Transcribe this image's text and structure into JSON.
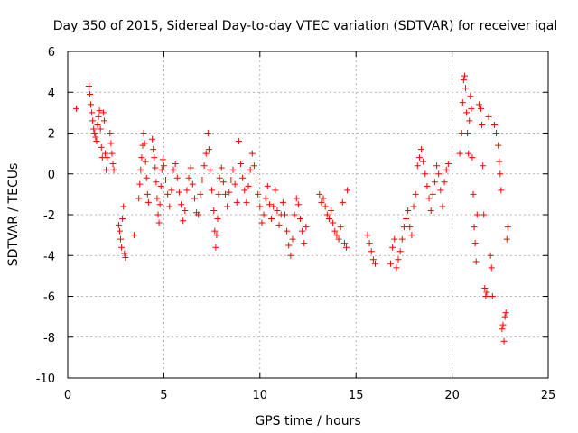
{
  "chart_data": {
    "type": "scatter",
    "title": "Day 350 of 2015, Sidereal Day-to-day VTEC variation (SDTVAR) for receiver iqal",
    "xlabel": "GPS time / hours",
    "ylabel": "SDTVAR / TECUs",
    "xlim": [
      0,
      25
    ],
    "ylim": [
      -10,
      6
    ],
    "xticks": [
      0,
      5,
      10,
      15,
      20,
      25
    ],
    "yticks": [
      -10,
      -8,
      -6,
      -4,
      -2,
      0,
      2,
      4,
      6
    ],
    "grid": true,
    "marker": "+",
    "color": "#ff0000",
    "series": [
      {
        "name": "SDTVAR",
        "points": [
          [
            0.45,
            3.2
          ],
          [
            1.1,
            4.3
          ],
          [
            1.15,
            3.9
          ],
          [
            1.2,
            3.4
          ],
          [
            1.25,
            3.0
          ],
          [
            1.3,
            2.6
          ],
          [
            1.35,
            2.2
          ],
          [
            1.4,
            2.0
          ],
          [
            1.45,
            1.8
          ],
          [
            1.5,
            1.6
          ],
          [
            1.55,
            2.4
          ],
          [
            1.6,
            2.8
          ],
          [
            1.65,
            3.1
          ],
          [
            1.7,
            2.2
          ],
          [
            1.75,
            1.3
          ],
          [
            1.8,
            0.8
          ],
          [
            1.85,
            3.0
          ],
          [
            1.9,
            2.6
          ],
          [
            1.95,
            1.0
          ],
          [
            2.0,
            0.2
          ],
          [
            2.05,
            0.8
          ],
          [
            2.2,
            2.0
          ],
          [
            2.25,
            1.5
          ],
          [
            2.3,
            1.0
          ],
          [
            2.35,
            0.5
          ],
          [
            2.4,
            0.2
          ],
          [
            2.65,
            -2.5
          ],
          [
            2.7,
            -2.8
          ],
          [
            2.75,
            -3.2
          ],
          [
            2.8,
            -3.6
          ],
          [
            2.85,
            -2.2
          ],
          [
            2.9,
            -1.6
          ],
          [
            2.95,
            -3.9
          ],
          [
            3.0,
            -4.1
          ],
          [
            3.45,
            -3.0
          ],
          [
            3.7,
            -1.2
          ],
          [
            3.75,
            -0.5
          ],
          [
            3.8,
            0.2
          ],
          [
            3.85,
            0.8
          ],
          [
            3.9,
            1.4
          ],
          [
            3.95,
            2.0
          ],
          [
            4.0,
            1.5
          ],
          [
            4.05,
            0.6
          ],
          [
            4.1,
            -0.2
          ],
          [
            4.15,
            -1.0
          ],
          [
            4.2,
            -1.4
          ],
          [
            4.4,
            1.7
          ],
          [
            4.45,
            1.2
          ],
          [
            4.5,
            0.8
          ],
          [
            4.55,
            0.3
          ],
          [
            4.6,
            -0.4
          ],
          [
            4.65,
            -1.2
          ],
          [
            4.7,
            -2.0
          ],
          [
            4.75,
            -2.4
          ],
          [
            4.8,
            -1.5
          ],
          [
            4.85,
            -0.6
          ],
          [
            4.9,
            0.2
          ],
          [
            4.95,
            0.7
          ],
          [
            5.0,
            0.4
          ],
          [
            5.1,
            -0.3
          ],
          [
            5.2,
            -1.0
          ],
          [
            5.3,
            -1.6
          ],
          [
            5.4,
            -0.8
          ],
          [
            5.5,
            0.2
          ],
          [
            5.6,
            0.5
          ],
          [
            5.7,
            -0.2
          ],
          [
            5.8,
            -0.9
          ],
          [
            5.9,
            -1.5
          ],
          [
            6.0,
            -2.3
          ],
          [
            6.1,
            -1.8
          ],
          [
            6.2,
            -0.8
          ],
          [
            6.3,
            -0.2
          ],
          [
            6.4,
            0.3
          ],
          [
            6.5,
            -0.5
          ],
          [
            6.6,
            -1.2
          ],
          [
            6.7,
            -1.9
          ],
          [
            6.8,
            -2.0
          ],
          [
            6.9,
            -1.0
          ],
          [
            7.0,
            -0.3
          ],
          [
            7.1,
            0.4
          ],
          [
            7.2,
            1.0
          ],
          [
            7.3,
            2.0
          ],
          [
            7.35,
            1.2
          ],
          [
            7.4,
            0.2
          ],
          [
            7.5,
            -0.8
          ],
          [
            7.6,
            -1.8
          ],
          [
            7.65,
            -2.8
          ],
          [
            7.7,
            -3.6
          ],
          [
            7.75,
            -3.0
          ],
          [
            7.8,
            -2.2
          ],
          [
            7.85,
            -1.0
          ],
          [
            7.9,
            -0.2
          ],
          [
            8.0,
            0.3
          ],
          [
            8.1,
            -0.4
          ],
          [
            8.2,
            -1.0
          ],
          [
            8.3,
            -1.6
          ],
          [
            8.4,
            -0.9
          ],
          [
            8.5,
            -0.3
          ],
          [
            8.6,
            0.2
          ],
          [
            8.7,
            -0.5
          ],
          [
            8.8,
            -1.4
          ],
          [
            8.9,
            1.6
          ],
          [
            9.0,
            0.5
          ],
          [
            9.1,
            -0.2
          ],
          [
            9.2,
            -0.8
          ],
          [
            9.3,
            -1.4
          ],
          [
            9.4,
            -0.6
          ],
          [
            9.5,
            0.2
          ],
          [
            9.6,
            1.0
          ],
          [
            9.7,
            0.4
          ],
          [
            9.8,
            -0.3
          ],
          [
            9.9,
            -1.0
          ],
          [
            10.0,
            -1.6
          ],
          [
            10.1,
            -2.4
          ],
          [
            10.2,
            -2.0
          ],
          [
            10.3,
            -1.2
          ],
          [
            10.4,
            -0.6
          ],
          [
            10.5,
            -1.5
          ],
          [
            10.6,
            -2.2
          ],
          [
            10.7,
            -1.6
          ],
          [
            10.8,
            -0.8
          ],
          [
            10.9,
            -1.8
          ],
          [
            11.0,
            -2.5
          ],
          [
            11.1,
            -2.0
          ],
          [
            11.2,
            -1.4
          ],
          [
            11.3,
            -2.0
          ],
          [
            11.4,
            -2.8
          ],
          [
            11.5,
            -3.5
          ],
          [
            11.6,
            -4.0
          ],
          [
            11.7,
            -3.2
          ],
          [
            11.8,
            -2.0
          ],
          [
            11.9,
            -1.2
          ],
          [
            12.0,
            -1.5
          ],
          [
            12.1,
            -2.2
          ],
          [
            12.2,
            -2.8
          ],
          [
            12.3,
            -3.4
          ],
          [
            12.4,
            -2.6
          ],
          [
            13.1,
            -1.0
          ],
          [
            13.2,
            -1.4
          ],
          [
            13.3,
            -1.2
          ],
          [
            13.4,
            -1.6
          ],
          [
            13.5,
            -2.0
          ],
          [
            13.6,
            -2.2
          ],
          [
            13.7,
            -1.8
          ],
          [
            13.8,
            -2.4
          ],
          [
            13.9,
            -2.8
          ],
          [
            14.0,
            -3.0
          ],
          [
            14.1,
            -3.2
          ],
          [
            14.2,
            -2.6
          ],
          [
            14.3,
            -1.4
          ],
          [
            14.4,
            -3.4
          ],
          [
            14.5,
            -3.6
          ],
          [
            14.55,
            -0.8
          ],
          [
            15.6,
            -3.0
          ],
          [
            15.7,
            -3.4
          ],
          [
            15.8,
            -3.8
          ],
          [
            15.9,
            -4.2
          ],
          [
            16.0,
            -4.4
          ],
          [
            16.8,
            -4.4
          ],
          [
            16.9,
            -3.6
          ],
          [
            17.0,
            -3.2
          ],
          [
            17.1,
            -4.6
          ],
          [
            17.2,
            -4.2
          ],
          [
            17.3,
            -3.8
          ],
          [
            17.4,
            -3.2
          ],
          [
            17.5,
            -2.6
          ],
          [
            17.6,
            -2.2
          ],
          [
            17.7,
            -1.8
          ],
          [
            17.8,
            -2.6
          ],
          [
            17.9,
            -3.0
          ],
          [
            18.0,
            -1.6
          ],
          [
            18.1,
            -1.0
          ],
          [
            18.2,
            0.4
          ],
          [
            18.3,
            0.8
          ],
          [
            18.4,
            1.2
          ],
          [
            18.5,
            0.6
          ],
          [
            18.6,
            0.0
          ],
          [
            18.7,
            -0.6
          ],
          [
            18.8,
            -1.2
          ],
          [
            18.9,
            -1.8
          ],
          [
            19.0,
            -1.0
          ],
          [
            19.1,
            -0.4
          ],
          [
            19.2,
            0.4
          ],
          [
            19.3,
            0.0
          ],
          [
            19.4,
            -0.8
          ],
          [
            19.5,
            -1.6
          ],
          [
            19.6,
            -0.4
          ],
          [
            19.7,
            0.2
          ],
          [
            19.8,
            0.5
          ],
          [
            20.4,
            1.0
          ],
          [
            20.5,
            2.0
          ],
          [
            20.55,
            3.5
          ],
          [
            20.6,
            4.6
          ],
          [
            20.65,
            4.8
          ],
          [
            20.7,
            4.2
          ],
          [
            20.75,
            3.0
          ],
          [
            20.8,
            2.0
          ],
          [
            20.85,
            1.0
          ],
          [
            20.9,
            2.6
          ],
          [
            20.95,
            3.8
          ],
          [
            21.0,
            3.2
          ],
          [
            21.05,
            0.8
          ],
          [
            21.1,
            -1.0
          ],
          [
            21.15,
            -2.6
          ],
          [
            21.2,
            -3.4
          ],
          [
            21.25,
            -4.3
          ],
          [
            21.3,
            -2.0
          ],
          [
            21.4,
            3.4
          ],
          [
            21.5,
            3.2
          ],
          [
            21.55,
            2.4
          ],
          [
            21.6,
            0.4
          ],
          [
            21.65,
            -2.0
          ],
          [
            21.7,
            -5.6
          ],
          [
            21.75,
            -6.0
          ],
          [
            21.8,
            -5.8
          ],
          [
            21.9,
            2.8
          ],
          [
            22.0,
            -4.0
          ],
          [
            22.05,
            -4.6
          ],
          [
            22.1,
            -6.0
          ],
          [
            22.2,
            2.4
          ],
          [
            22.3,
            2.0
          ],
          [
            22.4,
            1.4
          ],
          [
            22.45,
            0.6
          ],
          [
            22.5,
            0.0
          ],
          [
            22.55,
            -0.8
          ],
          [
            22.6,
            -7.6
          ],
          [
            22.65,
            -7.4
          ],
          [
            22.7,
            -8.2
          ],
          [
            22.75,
            -7.0
          ],
          [
            22.8,
            -6.8
          ],
          [
            22.85,
            -3.2
          ],
          [
            22.9,
            -2.6
          ]
        ]
      }
    ]
  }
}
